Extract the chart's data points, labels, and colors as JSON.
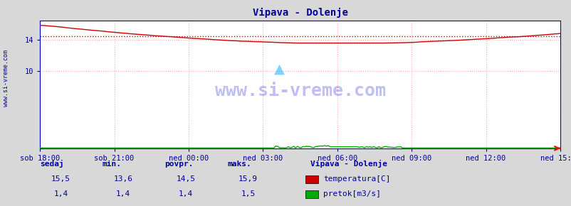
{
  "title": "Vipava - Dolenje",
  "title_color": "#000099",
  "bg_color": "#d8d8d8",
  "plot_bg_color": "#ffffff",
  "grid_color": "#ffaaaa",
  "border_color": "#0000cc",
  "xlabel_color": "#000099",
  "watermark": "www.si-vreme.com",
  "watermark_color": "#0000cc",
  "watermark_alpha": 0.25,
  "y_min": 0,
  "y_max": 16.5,
  "y_ticks": [
    10,
    14
  ],
  "x_ticks_labels": [
    "sob 18:00",
    "sob 21:00",
    "ned 00:00",
    "ned 03:00",
    "ned 06:00",
    "ned 09:00",
    "ned 12:00",
    "ned 15:00"
  ],
  "n_points": 288,
  "temp_color": "#cc0000",
  "temp_avg_color": "#cc0000",
  "flow_color": "#00aa00",
  "temp_min": 13.6,
  "temp_max": 15.9,
  "temp_avg": 14.5,
  "temp_current": 15.5,
  "flow_min": 1.4,
  "flow_max": 1.5,
  "flow_avg": 1.4,
  "flow_current": 1.4,
  "legend_title": "Vipava - Dolenje",
  "legend_title_color": "#000099",
  "label_color": "#000099",
  "stat_header": [
    "sedaj",
    "min.",
    "povpr.",
    "maks."
  ],
  "stat_temp": [
    "15,5",
    "13,6",
    "14,5",
    "15,9"
  ],
  "stat_flow": [
    "1,4",
    "1,4",
    "1,4",
    "1,5"
  ],
  "legend_items": [
    [
      "temperatura[C]",
      "#cc0000"
    ],
    [
      "pretok[m3/s]",
      "#00aa00"
    ]
  ]
}
